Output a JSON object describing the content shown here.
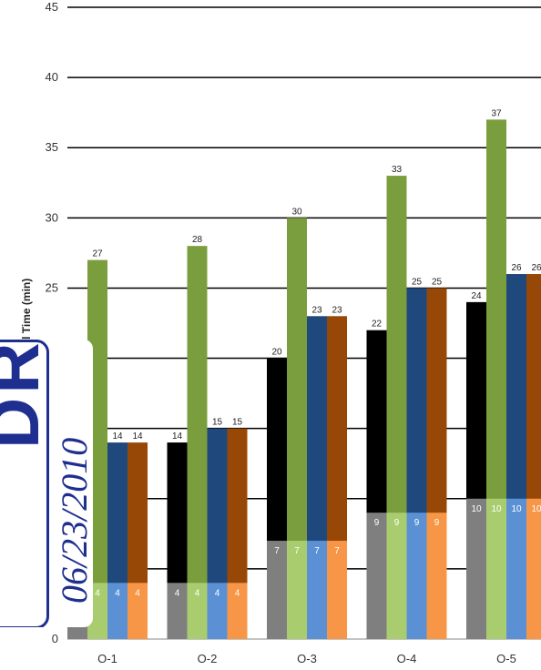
{
  "chart_data": {
    "type": "bar",
    "ylabel": "Travel Time (min)",
    "ylim": [
      0,
      45
    ],
    "yticks": [
      0,
      5,
      10,
      15,
      20,
      25,
      30,
      35,
      40,
      45
    ],
    "grid": true,
    "categories": [
      "O-1",
      "O-2",
      "O-3",
      "O-4",
      "O-5"
    ],
    "series": [
      {
        "color": "#7f7f7f",
        "values": [
          1,
          4,
          7,
          9,
          10
        ]
      },
      {
        "color": "#000000",
        "values": [
          null,
          14,
          20,
          22,
          24
        ]
      },
      {
        "color": "#a9cd6e",
        "values": [
          4,
          4,
          7,
          9,
          10
        ]
      },
      {
        "color": "#7a9e3e",
        "values": [
          27,
          28,
          30,
          33,
          37
        ]
      },
      {
        "color": "#5b91d4",
        "values": [
          4,
          4,
          7,
          9,
          10
        ]
      },
      {
        "color": "#1f497d",
        "values": [
          14,
          15,
          23,
          25,
          26
        ]
      },
      {
        "color": "#f79646",
        "values": [
          4,
          4,
          7,
          9,
          10
        ]
      },
      {
        "color": "#974806",
        "values": [
          14,
          15,
          23,
          25,
          26
        ]
      }
    ],
    "stack_pairs": [
      [
        0,
        1
      ],
      [
        2,
        3
      ],
      [
        4,
        5
      ],
      [
        6,
        7
      ]
    ]
  },
  "watermark": {
    "text": "DRAFT",
    "date": "06/23/2010"
  }
}
